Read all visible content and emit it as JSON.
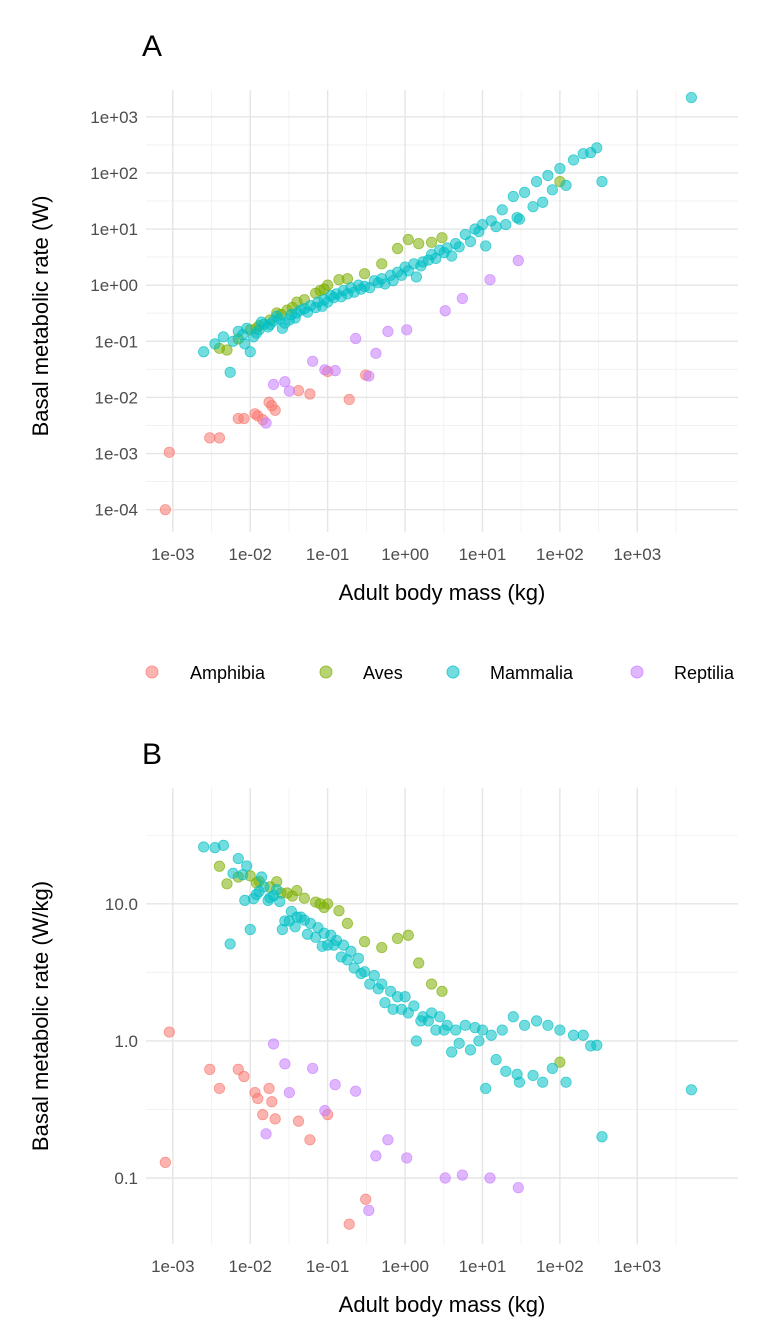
{
  "colors": {
    "Amphibia": "#F8766D",
    "Aves": "#7CAE00",
    "Mammalia": "#00BFC4",
    "Reptilia": "#C77CFF"
  },
  "legend": {
    "items": [
      "Amphibia",
      "Aves",
      "Mammalia",
      "Reptilia"
    ]
  },
  "chart_data": [
    {
      "panel": "A",
      "type": "scatter",
      "title": "",
      "xlabel": "Adult body mass (kg)",
      "ylabel": "Basal metabolic rate (W)",
      "x_scale": "log10",
      "y_scale": "log10",
      "xlim": [
        0.00045,
        20000
      ],
      "ylim": [
        4e-05,
        3000
      ],
      "x_ticks": [
        0.001,
        0.01,
        0.1,
        1,
        10,
        100,
        1000
      ],
      "x_tick_labels": [
        "1e-03",
        "1e-02",
        "1e-01",
        "1e+00",
        "1e+01",
        "1e+02",
        "1e+03"
      ],
      "y_ticks": [
        0.0001,
        0.001,
        0.01,
        0.1,
        1,
        10,
        100,
        1000
      ],
      "y_tick_labels": [
        "1e-04",
        "1e-03",
        "1e-02",
        "1e-01",
        "1e+00",
        "1e+01",
        "1e+02",
        "1e+03"
      ],
      "grid": true,
      "legend": "bottom",
      "series": [
        {
          "name": "Amphibia",
          "x": [
            0.0008,
            0.0009,
            0.003,
            0.004,
            0.007,
            0.0083,
            0.0115,
            0.0125,
            0.0145,
            0.0175,
            0.019,
            0.021,
            0.042,
            0.059,
            0.1,
            0.19,
            0.31
          ],
          "y": [
            0.0001,
            0.00105,
            0.0019,
            0.0019,
            0.0042,
            0.0042,
            0.0051,
            0.0047,
            0.004,
            0.0082,
            0.0071,
            0.0059,
            0.0132,
            0.0115,
            0.029,
            0.0092,
            0.025
          ]
        },
        {
          "name": "Reptilia",
          "x": [
            0.016,
            0.02,
            0.028,
            0.032,
            0.064,
            0.092,
            0.125,
            0.23,
            0.34,
            0.42,
            0.6,
            1.05,
            3.3,
            5.5,
            12.5,
            29
          ],
          "y": [
            0.0035,
            0.017,
            0.019,
            0.013,
            0.044,
            0.031,
            0.03,
            0.112,
            0.024,
            0.061,
            0.15,
            0.16,
            0.35,
            0.58,
            1.25,
            2.75
          ]
        },
        {
          "name": "Aves",
          "x": [
            0.004,
            0.005,
            0.007,
            0.01,
            0.013,
            0.018,
            0.025,
            0.03,
            0.04,
            0.05,
            0.07,
            0.08,
            0.1,
            0.14,
            0.18,
            0.3,
            0.5,
            0.8,
            1.1,
            1.5,
            2.2,
            3,
            0.012,
            0.022,
            0.035,
            0.09,
            100
          ],
          "y": [
            0.075,
            0.07,
            0.11,
            0.16,
            0.19,
            0.24,
            0.3,
            0.36,
            0.5,
            0.55,
            0.72,
            0.8,
            1.0,
            1.25,
            1.3,
            1.6,
            2.4,
            4.5,
            6.5,
            5.5,
            5.8,
            7.0,
            0.17,
            0.32,
            0.4,
            0.85,
            70
          ]
        },
        {
          "name": "Mammalia",
          "x": [
            0.0025,
            0.0035,
            0.0045,
            0.006,
            0.007,
            0.008,
            0.009,
            0.011,
            0.013,
            0.015,
            0.017,
            0.02,
            0.024,
            0.028,
            0.034,
            0.04,
            0.05,
            0.06,
            0.075,
            0.09,
            0.11,
            0.13,
            0.16,
            0.2,
            0.25,
            0.3,
            0.4,
            0.5,
            0.65,
            0.8,
            1.0,
            1.3,
            1.7,
            2.2,
            2.8,
            3.5,
            4.5,
            6,
            8,
            10,
            13,
            18,
            25,
            35,
            50,
            70,
            100,
            150,
            200,
            300,
            350,
            5000,
            0.0085,
            0.012,
            0.018,
            0.026,
            0.038,
            0.055,
            0.085,
            0.12,
            0.18,
            0.27,
            0.45,
            0.7,
            1.1,
            1.6,
            2.5,
            4,
            7,
            11,
            20,
            30,
            60,
            120,
            0.0055,
            0.01,
            0.014,
            0.022,
            0.032,
            0.045,
            0.07,
            0.1,
            0.15,
            0.22,
            0.35,
            0.55,
            0.9,
            1.4,
            2.0,
            3.2,
            5,
            9,
            15,
            28,
            45,
            80,
            250
          ],
          "y": [
            0.065,
            0.09,
            0.12,
            0.1,
            0.15,
            0.13,
            0.17,
            0.12,
            0.16,
            0.2,
            0.18,
            0.23,
            0.25,
            0.21,
            0.3,
            0.32,
            0.38,
            0.43,
            0.5,
            0.55,
            0.65,
            0.7,
            0.8,
            0.9,
            1.0,
            0.95,
            1.2,
            1.3,
            1.5,
            1.7,
            2.1,
            2.4,
            2.6,
            3.5,
            4.2,
            4.6,
            5.5,
            8,
            10,
            12,
            14,
            22,
            38,
            45,
            70,
            90,
            120,
            170,
            220,
            280,
            70,
            2200,
            0.09,
            0.14,
            0.2,
            0.17,
            0.26,
            0.33,
            0.42,
            0.6,
            0.7,
            0.85,
            1.1,
            1.2,
            1.8,
            2.2,
            3.0,
            3.3,
            6,
            5,
            12,
            15,
            30,
            60,
            0.028,
            0.065,
            0.22,
            0.28,
            0.24,
            0.36,
            0.4,
            0.5,
            0.62,
            0.75,
            0.9,
            1.05,
            1.5,
            1.4,
            2.8,
            3.8,
            4.8,
            9,
            11,
            16,
            25,
            50,
            230
          ]
        }
      ]
    },
    {
      "panel": "B",
      "type": "scatter",
      "title": "",
      "xlabel": "Adult body mass (kg)",
      "ylabel": "Basal metabolic rate (W/kg)",
      "x_scale": "log10",
      "y_scale": "log10",
      "xlim": [
        0.00045,
        20000
      ],
      "ylim": [
        0.033,
        70
      ],
      "x_ticks": [
        0.001,
        0.01,
        0.1,
        1,
        10,
        100,
        1000
      ],
      "x_tick_labels": [
        "1e-03",
        "1e-02",
        "1e-01",
        "1e+00",
        "1e+01",
        "1e+02",
        "1e+03"
      ],
      "y_ticks": [
        0.1,
        1,
        10
      ],
      "y_tick_labels": [
        "0.1",
        "1.0",
        "10.0"
      ],
      "grid": true,
      "legend": "none",
      "series": [
        {
          "name": "Amphibia",
          "x": [
            0.0008,
            0.0009,
            0.003,
            0.004,
            0.007,
            0.0083,
            0.0115,
            0.0125,
            0.0145,
            0.0175,
            0.019,
            0.021,
            0.042,
            0.059,
            0.1,
            0.19,
            0.31
          ],
          "y": [
            0.13,
            1.16,
            0.62,
            0.45,
            0.62,
            0.55,
            0.42,
            0.38,
            0.29,
            0.45,
            0.36,
            0.27,
            0.26,
            0.19,
            0.29,
            0.046,
            0.07
          ]
        },
        {
          "name": "Reptilia",
          "x": [
            0.016,
            0.02,
            0.028,
            0.032,
            0.064,
            0.092,
            0.125,
            0.23,
            0.34,
            0.42,
            0.6,
            1.05,
            3.3,
            5.5,
            12.5,
            29
          ],
          "y": [
            0.21,
            0.95,
            0.68,
            0.42,
            0.63,
            0.31,
            0.48,
            0.43,
            0.058,
            0.145,
            0.19,
            0.14,
            0.1,
            0.105,
            0.1,
            0.085
          ]
        },
        {
          "name": "Aves",
          "x": [
            0.004,
            0.005,
            0.007,
            0.01,
            0.013,
            0.018,
            0.025,
            0.03,
            0.04,
            0.05,
            0.07,
            0.08,
            0.1,
            0.14,
            0.18,
            0.3,
            0.5,
            0.8,
            1.1,
            1.5,
            2.2,
            3,
            0.012,
            0.022,
            0.035,
            0.09,
            100
          ],
          "y": [
            18.8,
            14,
            15.7,
            16,
            14.6,
            13.3,
            12,
            12,
            12.5,
            11,
            10.3,
            10,
            10,
            8.9,
            7.2,
            5.3,
            4.8,
            5.6,
            5.9,
            3.7,
            2.6,
            2.3,
            14.2,
            14.5,
            11.4,
            9.4,
            0.7
          ]
        },
        {
          "name": "Mammalia",
          "x": [
            0.0025,
            0.0035,
            0.0045,
            0.006,
            0.007,
            0.008,
            0.009,
            0.011,
            0.013,
            0.015,
            0.017,
            0.02,
            0.024,
            0.028,
            0.034,
            0.04,
            0.05,
            0.06,
            0.075,
            0.09,
            0.11,
            0.13,
            0.16,
            0.2,
            0.25,
            0.3,
            0.4,
            0.5,
            0.65,
            0.8,
            1.0,
            1.3,
            1.7,
            2.2,
            2.8,
            3.5,
            4.5,
            6,
            8,
            10,
            13,
            18,
            25,
            35,
            50,
            70,
            100,
            150,
            200,
            300,
            350,
            5000,
            0.0085,
            0.012,
            0.018,
            0.026,
            0.038,
            0.055,
            0.085,
            0.12,
            0.18,
            0.27,
            0.45,
            0.7,
            1.1,
            1.6,
            2.5,
            4,
            7,
            11,
            20,
            30,
            60,
            120,
            0.0055,
            0.01,
            0.014,
            0.022,
            0.032,
            0.045,
            0.07,
            0.1,
            0.15,
            0.22,
            0.35,
            0.55,
            0.9,
            1.4,
            2.0,
            3.2,
            5,
            9,
            15,
            28,
            45,
            80,
            250
          ],
          "y": [
            26,
            25.7,
            26.7,
            16.7,
            21.4,
            16.3,
            18.9,
            10.9,
            12.3,
            13.3,
            10.6,
            11.5,
            10.4,
            7.5,
            8.8,
            8,
            7.6,
            7.2,
            6.7,
            6.1,
            5.9,
            5.4,
            5,
            4.5,
            4,
            3.2,
            3,
            2.6,
            2.3,
            2.1,
            2.1,
            1.8,
            1.5,
            1.6,
            1.5,
            1.3,
            1.2,
            1.3,
            1.25,
            1.2,
            1.1,
            1.2,
            1.5,
            1.3,
            1.4,
            1.3,
            1.2,
            1.1,
            1.1,
            0.93,
            0.2,
            0.44,
            10.6,
            11.7,
            11.1,
            6.5,
            6.8,
            6,
            4.9,
            5,
            3.9,
            3.1,
            2.4,
            1.7,
            1.6,
            1.4,
            1.2,
            0.83,
            0.86,
            0.45,
            0.6,
            0.5,
            0.5,
            0.5,
            5.1,
            6.5,
            15.7,
            12.7,
            7.5,
            8,
            5.7,
            5,
            4.1,
            3.4,
            2.6,
            1.9,
            1.7,
            1.0,
            1.4,
            1.2,
            0.96,
            1.0,
            0.73,
            0.57,
            0.56,
            0.63,
            0.92
          ]
        }
      ]
    }
  ]
}
